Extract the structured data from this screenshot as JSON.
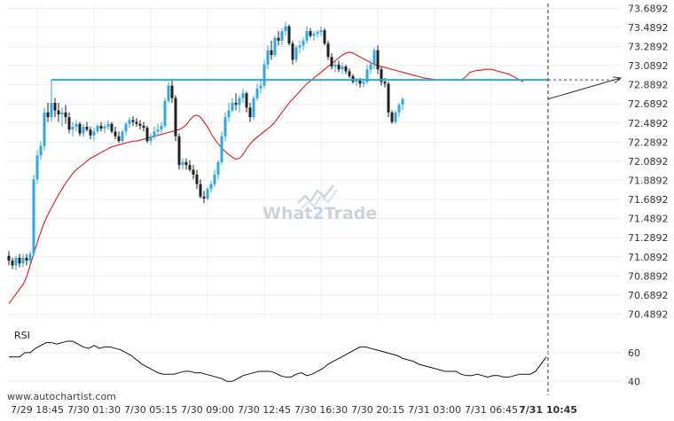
{
  "watermark": {
    "brand_a": "What",
    "brand_b": "2",
    "brand_c": "Trade"
  },
  "footer": {
    "source_text": "www.autochartist.com"
  },
  "colors": {
    "bull": "#2ea8e0",
    "bear": "#222222",
    "ma": "#e02a2a",
    "resistance": "#2ea8e0",
    "grid": "#eeeeee",
    "rsi": "#111111"
  },
  "chart_data": [
    {
      "type": "candlestick",
      "title": "",
      "y_ticks": [
        "73.6892",
        "73.4892",
        "73.2892",
        "73.0892",
        "72.8892",
        "72.6892",
        "72.4892",
        "72.2892",
        "72.0892",
        "71.8892",
        "71.6892",
        "71.4892",
        "71.2892",
        "71.0892",
        "70.8892",
        "70.6892",
        "70.4892"
      ],
      "ylim": [
        70.42,
        73.72
      ],
      "x_tick_labels": [
        "7/29 18:45",
        "7/30 01:30",
        "7/30 05:15",
        "7/30 09:00",
        "7/30 12:45",
        "7/30 16:30",
        "7/30 20:15",
        "7/31 03:00",
        "7/31 06:45",
        "7/31 10:45"
      ],
      "x_tick_index": [
        8,
        24,
        40,
        56,
        72,
        88,
        104,
        120,
        136,
        152
      ],
      "current_marker_index": 152,
      "resistance_level": 72.94,
      "resistance_start_index": 12,
      "projection": {
        "from_value": 72.74,
        "to_value": 72.96
      },
      "moving_average": [
        70.6,
        70.65,
        70.7,
        70.75,
        70.8,
        70.88,
        71.0,
        71.12,
        71.24,
        71.35,
        71.45,
        71.53,
        71.6,
        71.67,
        71.74,
        71.8,
        71.86,
        71.91,
        71.96,
        72.0,
        72.03,
        72.06,
        72.09,
        72.12,
        72.14,
        72.16,
        72.18,
        72.2,
        72.22,
        72.24,
        72.25,
        72.26,
        72.27,
        72.28,
        72.29,
        72.3,
        72.3,
        72.31,
        72.32,
        72.33,
        72.34,
        72.35,
        72.36,
        72.37,
        72.38,
        72.39,
        72.4,
        72.41,
        72.42,
        72.44,
        72.47,
        72.52,
        72.56,
        72.57,
        72.55,
        72.5,
        72.45,
        72.38,
        72.32,
        72.27,
        72.23,
        72.19,
        72.16,
        72.13,
        72.11,
        72.12,
        72.16,
        72.22,
        72.27,
        72.31,
        72.34,
        72.37,
        72.4,
        72.43,
        72.46,
        72.5,
        72.55,
        72.6,
        72.65,
        72.7,
        72.74,
        72.78,
        72.82,
        72.86,
        72.9,
        72.93,
        72.96,
        72.99,
        73.02,
        73.05,
        73.08,
        73.11,
        73.14,
        73.17,
        73.2,
        73.22,
        73.23,
        73.22,
        73.2,
        73.18,
        73.16,
        73.14,
        73.12,
        73.1,
        73.09,
        73.08,
        73.07,
        73.06,
        73.05,
        73.04,
        73.03,
        73.02,
        73.01,
        73.0,
        72.99,
        72.98,
        72.97,
        72.96,
        72.955,
        72.95,
        72.945,
        72.94,
        72.94,
        72.94,
        72.94,
        72.94,
        72.94,
        72.94,
        72.95,
        72.98,
        73.02,
        73.03,
        73.04,
        73.04,
        73.05,
        73.05,
        73.05,
        73.04,
        73.03,
        73.02,
        73.01,
        73.0,
        72.98,
        72.96,
        72.94,
        72.92
      ],
      "candles": [
        [
          71.1,
          71.15,
          71.0,
          71.05
        ],
        [
          71.05,
          71.08,
          70.96,
          71.0
        ],
        [
          71.0,
          71.1,
          70.95,
          71.08
        ],
        [
          71.08,
          71.12,
          70.98,
          71.02
        ],
        [
          71.02,
          71.12,
          70.98,
          71.08
        ],
        [
          71.08,
          71.12,
          71.0,
          71.05
        ],
        [
          71.05,
          71.15,
          71.0,
          71.12
        ],
        [
          71.12,
          71.95,
          71.1,
          71.9
        ],
        [
          71.9,
          72.2,
          71.85,
          72.15
        ],
        [
          72.15,
          72.3,
          72.1,
          72.25
        ],
        [
          72.25,
          72.65,
          72.2,
          72.6
        ],
        [
          72.6,
          72.7,
          72.5,
          72.55
        ],
        [
          72.55,
          72.94,
          72.5,
          72.7
        ],
        [
          72.7,
          72.75,
          72.55,
          72.62
        ],
        [
          72.62,
          72.7,
          72.5,
          72.58
        ],
        [
          72.58,
          72.65,
          72.45,
          72.6
        ],
        [
          72.6,
          72.68,
          72.48,
          72.55
        ],
        [
          72.55,
          72.6,
          72.38,
          72.42
        ],
        [
          72.42,
          72.5,
          72.35,
          72.45
        ],
        [
          72.45,
          72.52,
          72.4,
          72.48
        ],
        [
          72.48,
          72.5,
          72.35,
          72.38
        ],
        [
          72.38,
          72.48,
          72.34,
          72.45
        ],
        [
          72.45,
          72.5,
          72.4,
          72.42
        ],
        [
          72.42,
          72.45,
          72.32,
          72.36
        ],
        [
          72.36,
          72.44,
          72.3,
          72.4
        ],
        [
          72.4,
          72.48,
          72.38,
          72.46
        ],
        [
          72.46,
          72.5,
          72.4,
          72.43
        ],
        [
          72.43,
          72.48,
          72.38,
          72.45
        ],
        [
          72.45,
          72.52,
          72.42,
          72.48
        ],
        [
          72.48,
          72.5,
          72.38,
          72.4
        ],
        [
          72.4,
          72.45,
          72.32,
          72.35
        ],
        [
          72.35,
          72.4,
          72.28,
          72.3
        ],
        [
          72.3,
          72.42,
          72.28,
          72.4
        ],
        [
          72.4,
          72.5,
          72.36,
          72.48
        ],
        [
          72.48,
          72.55,
          72.44,
          72.52
        ],
        [
          72.52,
          72.56,
          72.46,
          72.5
        ],
        [
          72.5,
          72.54,
          72.45,
          72.48
        ],
        [
          72.48,
          72.52,
          72.42,
          72.46
        ],
        [
          72.46,
          72.5,
          72.4,
          72.44
        ],
        [
          72.44,
          72.46,
          72.28,
          72.3
        ],
        [
          72.3,
          72.38,
          72.26,
          72.35
        ],
        [
          72.35,
          72.45,
          72.32,
          72.4
        ],
        [
          72.4,
          72.48,
          72.36,
          72.42
        ],
        [
          72.42,
          72.5,
          72.38,
          72.46
        ],
        [
          72.46,
          72.75,
          72.44,
          72.72
        ],
        [
          72.72,
          72.92,
          72.7,
          72.88
        ],
        [
          72.88,
          72.94,
          72.7,
          72.75
        ],
        [
          72.75,
          72.78,
          72.3,
          72.35
        ],
        [
          72.35,
          72.38,
          72.0,
          72.05
        ],
        [
          72.05,
          72.12,
          72.0,
          72.08
        ],
        [
          72.08,
          72.12,
          72.0,
          72.05
        ],
        [
          72.05,
          72.1,
          71.98,
          72.0
        ],
        [
          72.0,
          72.05,
          71.9,
          71.95
        ],
        [
          71.95,
          72.0,
          71.8,
          71.85
        ],
        [
          71.85,
          71.9,
          71.7,
          71.72
        ],
        [
          71.72,
          71.78,
          71.65,
          71.7
        ],
        [
          71.7,
          71.82,
          71.68,
          71.8
        ],
        [
          71.8,
          71.88,
          71.76,
          71.85
        ],
        [
          71.85,
          72.0,
          71.82,
          71.95
        ],
        [
          71.95,
          72.1,
          71.9,
          72.08
        ],
        [
          72.08,
          72.4,
          72.05,
          72.35
        ],
        [
          72.35,
          72.6,
          72.3,
          72.55
        ],
        [
          72.55,
          72.7,
          72.5,
          72.62
        ],
        [
          72.62,
          72.75,
          72.6,
          72.7
        ],
        [
          72.7,
          72.8,
          72.62,
          72.68
        ],
        [
          72.68,
          72.78,
          72.6,
          72.75
        ],
        [
          72.75,
          72.85,
          72.7,
          72.8
        ],
        [
          72.8,
          72.82,
          72.6,
          72.65
        ],
        [
          72.65,
          72.7,
          72.5,
          72.55
        ],
        [
          72.55,
          72.78,
          72.52,
          72.75
        ],
        [
          72.75,
          72.9,
          72.72,
          72.85
        ],
        [
          72.85,
          72.95,
          72.8,
          72.88
        ],
        [
          72.88,
          73.15,
          72.85,
          73.1
        ],
        [
          73.1,
          73.3,
          73.05,
          73.25
        ],
        [
          73.25,
          73.35,
          73.15,
          73.2
        ],
        [
          73.2,
          73.4,
          73.18,
          73.38
        ],
        [
          73.38,
          73.45,
          73.3,
          73.35
        ],
        [
          73.35,
          73.48,
          73.3,
          73.45
        ],
        [
          73.45,
          73.55,
          73.4,
          73.5
        ],
        [
          73.5,
          73.52,
          73.3,
          73.32
        ],
        [
          73.32,
          73.35,
          73.1,
          73.15
        ],
        [
          73.15,
          73.3,
          73.12,
          73.28
        ],
        [
          73.28,
          73.35,
          73.22,
          73.3
        ],
        [
          73.3,
          73.38,
          73.25,
          73.35
        ],
        [
          73.35,
          73.5,
          73.32,
          73.45
        ],
        [
          73.45,
          73.48,
          73.38,
          73.4
        ],
        [
          73.4,
          73.45,
          73.35,
          73.42
        ],
        [
          73.42,
          73.46,
          73.38,
          73.44
        ],
        [
          73.44,
          73.5,
          73.4,
          73.46
        ],
        [
          73.46,
          73.48,
          73.3,
          73.32
        ],
        [
          73.32,
          73.35,
          73.15,
          73.18
        ],
        [
          73.18,
          73.22,
          73.05,
          73.08
        ],
        [
          73.08,
          73.15,
          73.02,
          73.1
        ],
        [
          73.1,
          73.14,
          73.02,
          73.05
        ],
        [
          73.05,
          73.12,
          73.0,
          73.08
        ],
        [
          73.08,
          73.1,
          73.0,
          73.03
        ],
        [
          73.03,
          73.06,
          72.96,
          72.98
        ],
        [
          72.98,
          73.0,
          72.9,
          72.92
        ],
        [
          72.92,
          72.96,
          72.88,
          72.94
        ],
        [
          72.94,
          72.96,
          72.86,
          72.9
        ],
        [
          72.9,
          72.95,
          72.86,
          72.92
        ],
        [
          72.92,
          73.1,
          72.9,
          73.05
        ],
        [
          73.05,
          73.15,
          73.0,
          73.1
        ],
        [
          73.1,
          73.28,
          73.05,
          73.25
        ],
        [
          73.25,
          73.3,
          73.0,
          73.05
        ],
        [
          73.05,
          73.08,
          72.88,
          72.92
        ],
        [
          72.92,
          72.96,
          72.86,
          72.9
        ],
        [
          72.9,
          72.92,
          72.55,
          72.6
        ],
        [
          72.6,
          72.62,
          72.48,
          72.5
        ],
        [
          72.5,
          72.62,
          72.48,
          72.6
        ],
        [
          72.6,
          72.7,
          72.55,
          72.68
        ],
        [
          72.68,
          72.76,
          72.62,
          72.74
        ]
      ]
    },
    {
      "type": "line",
      "title": "RSI",
      "y_ticks": [
        60,
        40
      ],
      "ylim": [
        34,
        76
      ],
      "values": [
        57,
        57,
        57,
        60,
        60,
        63,
        65,
        67,
        67,
        66,
        67,
        68,
        68,
        66,
        64,
        63,
        65,
        63,
        64,
        64,
        63,
        62,
        60,
        58,
        55,
        52,
        50,
        48,
        46,
        45,
        45,
        45,
        46,
        47,
        47,
        46,
        46,
        45,
        44,
        43,
        42,
        40,
        40,
        42,
        44,
        45,
        46,
        47,
        47,
        47,
        46,
        44,
        43,
        43,
        45,
        46,
        44,
        45,
        47,
        49,
        52,
        54,
        56,
        58,
        60,
        62,
        64,
        64,
        63,
        62,
        61,
        60,
        59,
        58,
        56,
        55,
        54,
        52,
        51,
        50,
        49,
        48,
        47,
        47,
        47,
        45,
        44,
        44,
        45,
        44,
        43,
        44,
        44,
        43,
        43,
        44,
        45,
        45,
        45,
        47,
        52,
        57
      ]
    }
  ]
}
